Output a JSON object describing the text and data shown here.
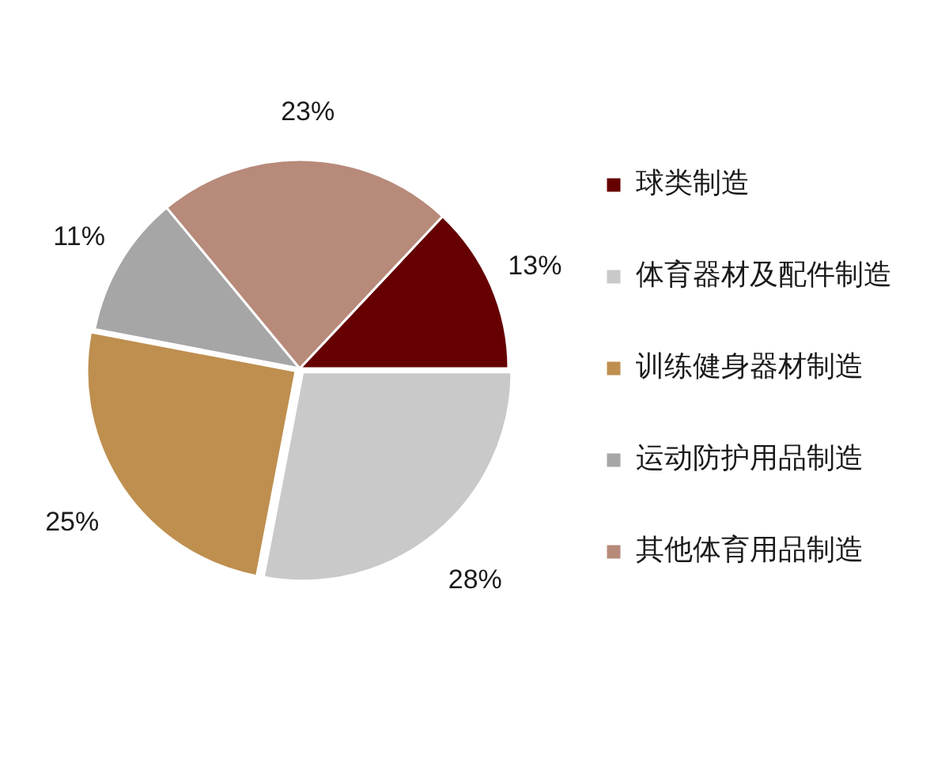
{
  "chart_data": {
    "type": "pie",
    "categories": [
      "球类制造",
      "体育器材及配件制造",
      "训练健身器材制造",
      "运动防护用品制造",
      "其他体育用品制造"
    ],
    "values": [
      13,
      28,
      25,
      11,
      23
    ],
    "colors": [
      "#660000",
      "#c9c9c9",
      "#be8f4f",
      "#a6a6a6",
      "#b78a7a"
    ],
    "value_labels": [
      "13%",
      "28%",
      "25%",
      "11%",
      "23%"
    ],
    "legend": "right"
  }
}
